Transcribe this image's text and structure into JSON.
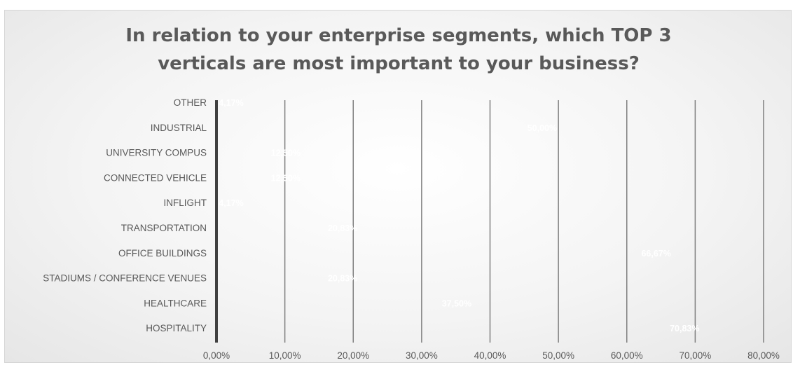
{
  "chart_data": {
    "type": "bar",
    "orientation": "horizontal",
    "title_lines": [
      "In relation to your enterprise segments, which TOP 3",
      "verticals are most important to your business?"
    ],
    "categories": [
      "OTHER",
      "INDUSTRIAL",
      "UNIVERSITY COMPUS",
      "CONNECTED VEHICLE",
      "INFLIGHT",
      "TRANSPORTATION",
      "OFFICE BUILDINGS",
      "STADIUMS / CONFERENCE VENUES",
      "HEALTHCARE",
      "HOSPITALITY"
    ],
    "values": [
      4.17,
      50.0,
      12.5,
      12.5,
      4.17,
      20.83,
      66.67,
      20.83,
      37.5,
      70.83
    ],
    "data_labels": [
      "4,17%",
      "50,00%",
      "12,50%",
      "12,50%",
      "4,17%",
      "20,83%",
      "66,67%",
      "20,83%",
      "37,50%",
      "70,83%"
    ],
    "x_ticks": [
      "0,00%",
      "10,00%",
      "20,00%",
      "30,00%",
      "40,00%",
      "50,00%",
      "60,00%",
      "70,00%",
      "80,00%"
    ],
    "xlim": [
      0,
      80
    ],
    "grid": true,
    "legend": "none",
    "colors": {
      "category_axis": "#404040",
      "gridline": "#7f7f7f",
      "text": "#595959",
      "data_label": "#ffffff"
    }
  }
}
